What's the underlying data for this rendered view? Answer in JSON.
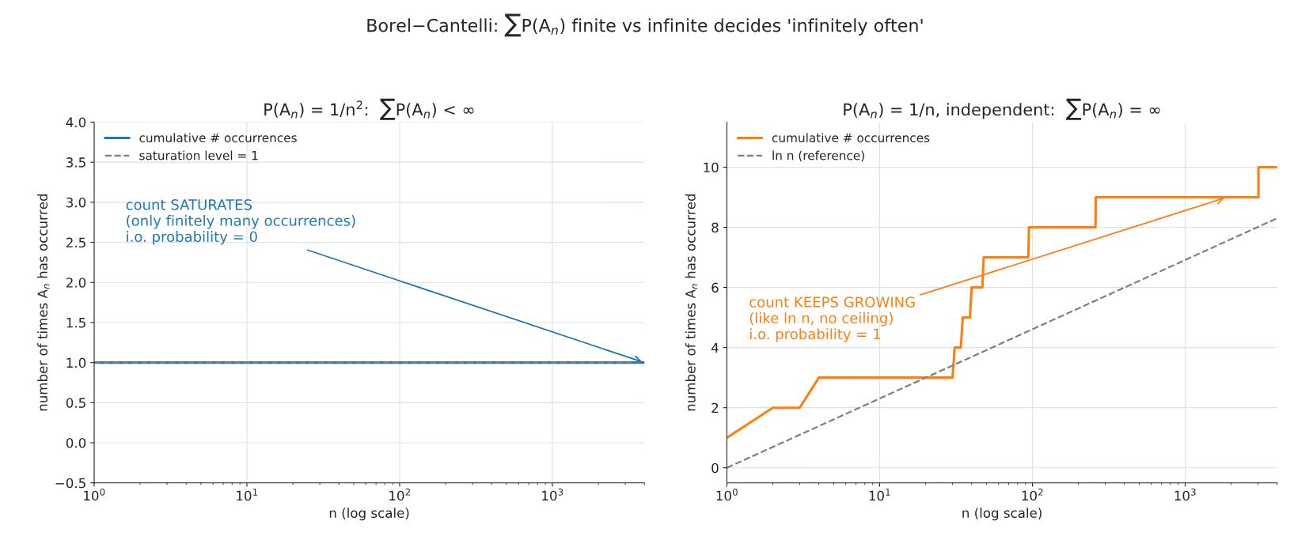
{
  "chart_data": [
    {
      "type": "line",
      "title": "P(A$_{n}$) = 1/n$^{2}$:  ∑P(A$_{n}$) < ∞",
      "xlabel": "n (log scale)",
      "ylabel": "number of times A$_{n}$ has occurred",
      "log": "x",
      "xlim": [
        1,
        4000
      ],
      "xticks": [
        {
          "value": 1,
          "label": "10$^{0}$"
        },
        {
          "value": 10,
          "label": "10$^{1}$"
        },
        {
          "value": 100,
          "label": "10$^{2}$"
        },
        {
          "value": 1000,
          "label": "10$^{3}$"
        }
      ],
      "ylim": [
        -0.5,
        4
      ],
      "yticks": [
        {
          "value": -0.5,
          "label": "−0.5"
        },
        {
          "value": 0,
          "label": "0.0"
        },
        0.5,
        {
          "value": 1,
          "label": "1.0"
        },
        1.5,
        {
          "value": 2,
          "label": "2.0"
        },
        2.5,
        {
          "value": 3,
          "label": "3.0"
        },
        3.5,
        {
          "value": 4,
          "label": "4.0"
        }
      ],
      "grid": true,
      "legend": "top left",
      "series": [
        {
          "name": "cumulative # occurrences",
          "color": "#1f77b4",
          "x": [
            1,
            4000
          ],
          "values": [
            1,
            1
          ],
          "line_style": "solid"
        },
        {
          "name": "saturation level = 1",
          "color": "#7f7f7f",
          "x": [
            1,
            4000
          ],
          "values": [
            1,
            1
          ],
          "line_style": "dashed"
        }
      ],
      "annotations": [
        "Borel−Cantelli: ∑P(A$_{n}$) finite vs infinite decides 'infinitely often'",
        {
          "text": "count SATURATES\n(only finitely many occurrences)\ni.o. probability = 0",
          "x": 4000,
          "y": 1
        }
      ]
    },
    {
      "type": "line",
      "title": "P(A$_{n}$) = 1/n, independent:  ∑P(A$_{n}$) = ∞",
      "xlabel": "n (log scale)",
      "ylabel": "number of times A$_{n}$ has occurred",
      "log": "x",
      "xlim": [
        1,
        4000
      ],
      "xticks": [
        {
          "value": 1,
          "label": "10$^{0}$"
        },
        {
          "value": 10,
          "label": "10$^{1}$"
        },
        {
          "value": 100,
          "label": "10$^{2}$"
        },
        {
          "value": 1000,
          "label": "10$^{3}$"
        }
      ],
      "ylim": [
        -0.5,
        11.5
      ],
      "yticks": [
        0,
        2,
        4,
        6,
        8,
        10
      ],
      "grid": true,
      "legend": "top left",
      "series": [
        {
          "name": "cumulative # occurrences",
          "color": "#ff7f0e",
          "x": [
            1,
            2,
            3,
            4,
            30,
            31,
            34,
            35,
            39,
            40,
            47,
            48,
            94,
            95,
            259,
            260,
            3020,
            3021,
            4000
          ],
          "values": [
            1,
            2,
            2,
            3,
            3,
            4,
            4,
            5,
            5,
            6,
            6,
            7,
            7,
            8,
            8,
            9,
            9,
            10,
            10
          ],
          "line_style": "solid"
        },
        {
          "name": "ln n (reference)",
          "color": "#7f7f7f",
          "x": [
            1,
            4000
          ],
          "values": [
            0,
            8.3
          ],
          "line_style": "dashed"
        }
      ],
      "annotations": [
        {
          "text": "count KEEPS GROWING\n(like ln n, no ceiling)\ni.o. probability = 1",
          "x": 1875,
          "y": 9
        }
      ]
    }
  ]
}
